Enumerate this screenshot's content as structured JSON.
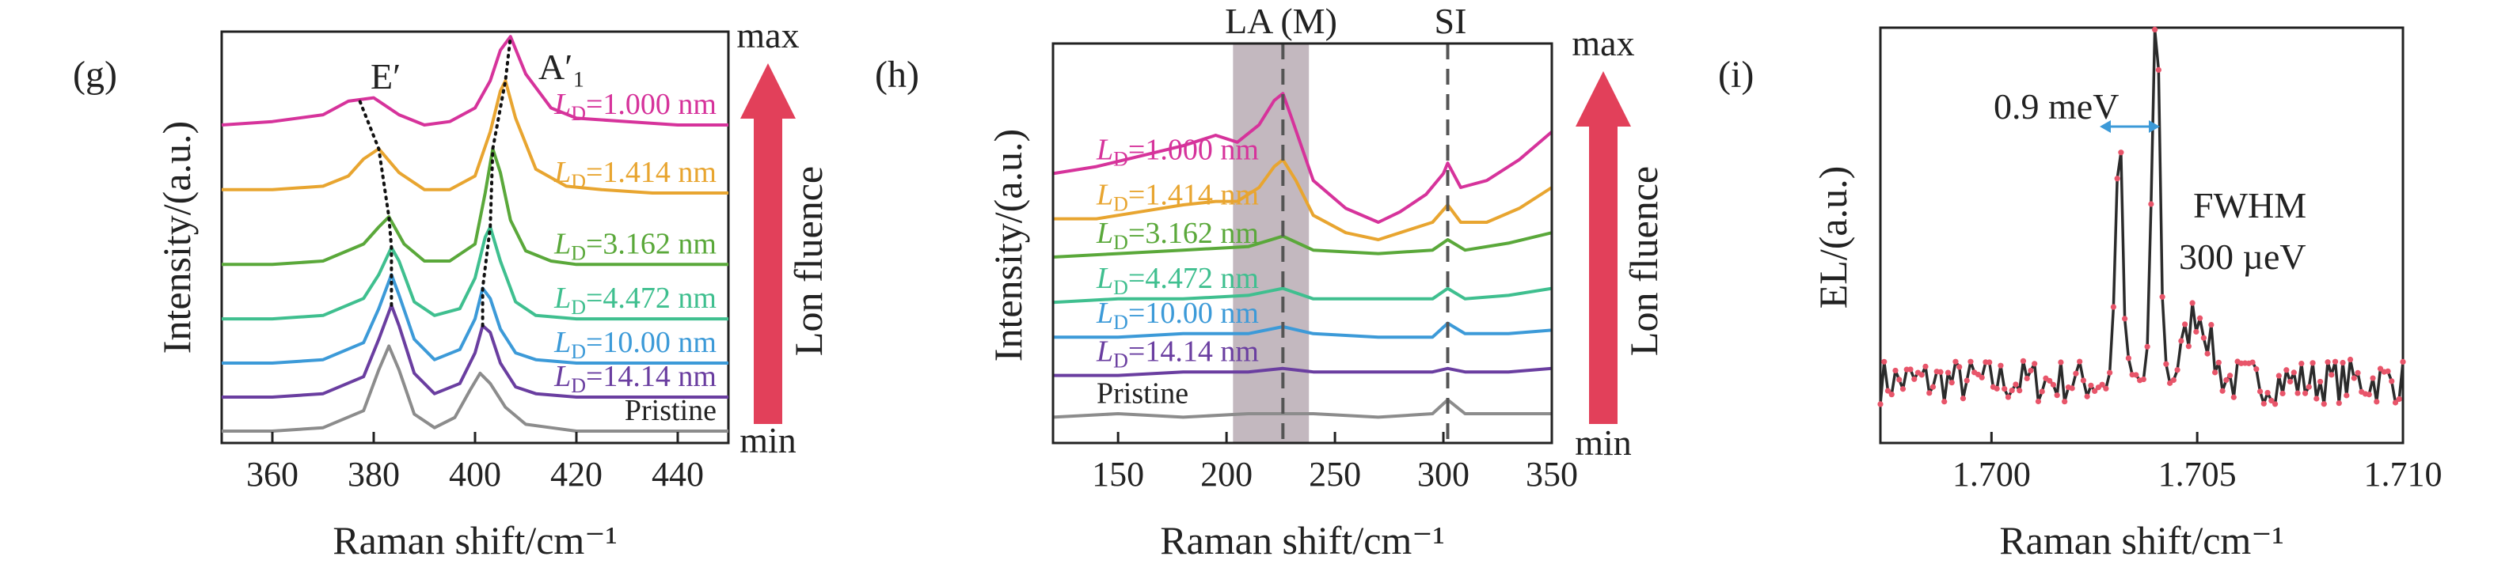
{
  "colors": {
    "magenta": "#d6339b",
    "orange": "#e8a530",
    "green": "#5aa83a",
    "teal": "#3fbf8f",
    "blue": "#3c9ad8",
    "purple": "#6a3ea0",
    "gray": "#8c8c8c",
    "arrow": "#e2405a",
    "band": "#b9abb4"
  },
  "fluence_arrow": {
    "max_label": "max",
    "min_label": "min",
    "text": "Lon fluence"
  },
  "chart_data": [
    {
      "type": "line",
      "panel": "(g)",
      "xlabel": "Raman shift/cm⁻¹",
      "ylabel": "Intensity/(a.u.)",
      "xlim": [
        350,
        450
      ],
      "xticks": [
        360,
        380,
        400,
        420,
        440
      ],
      "annotations": [
        "E′",
        "A′₁"
      ],
      "series": [
        {
          "name": "LD=1.000 nm",
          "prefix": "L",
          "sub": "D",
          "value": "=1.000 nm",
          "color": "#d6339b",
          "x": [
            350,
            360,
            370,
            375,
            380,
            385,
            390,
            395,
            400,
            403,
            405,
            407,
            410,
            415,
            420,
            430,
            440,
            450
          ],
          "y": [
            0.9,
            0.91,
            0.93,
            0.97,
            0.98,
            0.93,
            0.9,
            0.91,
            0.95,
            1.03,
            1.12,
            1.16,
            1.05,
            0.95,
            0.92,
            0.91,
            0.9,
            0.9
          ]
        },
        {
          "name": "LD=1.414 nm",
          "prefix": "L",
          "sub": "D",
          "value": "=1.414 nm",
          "color": "#e8a530",
          "x": [
            350,
            360,
            370,
            375,
            378,
            381,
            385,
            390,
            395,
            400,
            403,
            405,
            406,
            408,
            412,
            418,
            425,
            435,
            450
          ],
          "y": [
            0.71,
            0.71,
            0.72,
            0.75,
            0.8,
            0.83,
            0.76,
            0.71,
            0.71,
            0.75,
            0.88,
            1.0,
            1.03,
            0.92,
            0.77,
            0.72,
            0.71,
            0.7,
            0.7
          ]
        },
        {
          "name": "LD=3.162 nm",
          "prefix": "L",
          "sub": "D",
          "value": "=3.162 nm",
          "color": "#5aa83a",
          "x": [
            350,
            360,
            370,
            378,
            381,
            383,
            386,
            390,
            395,
            400,
            402,
            403.5,
            405,
            407,
            410,
            415,
            420,
            430,
            450
          ],
          "y": [
            0.49,
            0.49,
            0.5,
            0.55,
            0.6,
            0.63,
            0.55,
            0.5,
            0.5,
            0.55,
            0.7,
            0.83,
            0.76,
            0.62,
            0.53,
            0.5,
            0.49,
            0.49,
            0.49
          ]
        },
        {
          "name": "LD=4.472 nm",
          "prefix": "L",
          "sub": "D",
          "value": "=4.472 nm",
          "color": "#3fbf8f",
          "x": [
            350,
            360,
            370,
            378,
            381,
            383.5,
            385,
            388,
            392,
            397,
            400,
            402,
            403,
            405,
            408,
            412,
            420,
            430,
            450
          ],
          "y": [
            0.33,
            0.33,
            0.34,
            0.39,
            0.46,
            0.54,
            0.5,
            0.38,
            0.34,
            0.36,
            0.45,
            0.57,
            0.6,
            0.5,
            0.38,
            0.34,
            0.33,
            0.33,
            0.33
          ]
        },
        {
          "name": "LD=10.00 nm",
          "prefix": "L",
          "sub": "D",
          "value": "=10.00 nm",
          "color": "#3c9ad8",
          "x": [
            350,
            360,
            370,
            378,
            381,
            383.5,
            385,
            388,
            392,
            397,
            400,
            401.5,
            403,
            405,
            408,
            412,
            420,
            430,
            450
          ],
          "y": [
            0.2,
            0.2,
            0.21,
            0.26,
            0.36,
            0.46,
            0.4,
            0.27,
            0.21,
            0.24,
            0.33,
            0.42,
            0.39,
            0.3,
            0.23,
            0.21,
            0.2,
            0.2,
            0.2
          ]
        },
        {
          "name": "LD=14.14 nm",
          "prefix": "L",
          "sub": "D",
          "value": "=14.14 nm",
          "color": "#6a3ea0",
          "x": [
            350,
            360,
            370,
            378,
            381,
            383.5,
            385,
            388,
            392,
            397,
            400,
            401.5,
            403,
            405,
            408,
            412,
            420,
            430,
            450
          ],
          "y": [
            0.1,
            0.1,
            0.11,
            0.16,
            0.27,
            0.37,
            0.31,
            0.17,
            0.11,
            0.14,
            0.23,
            0.31,
            0.29,
            0.2,
            0.13,
            0.11,
            0.1,
            0.1,
            0.1
          ]
        },
        {
          "name": "Pristine",
          "prefix": "Pristine",
          "sub": "",
          "value": "",
          "color": "#8c8c8c",
          "x": [
            350,
            360,
            370,
            378,
            381,
            383,
            385,
            388,
            392,
            396,
            399,
            401,
            403,
            406,
            410,
            415,
            420,
            430,
            450
          ],
          "y": [
            0.0,
            0.0,
            0.01,
            0.06,
            0.18,
            0.25,
            0.18,
            0.05,
            0.01,
            0.04,
            0.12,
            0.17,
            0.14,
            0.07,
            0.02,
            0.01,
            0.0,
            0.0,
            0.0
          ]
        }
      ]
    },
    {
      "type": "line",
      "panel": "(h)",
      "xlabel": "Raman shift/cm⁻¹",
      "ylabel": "Intensity/(a.u.)",
      "xlim": [
        120,
        350
      ],
      "xticks": [
        150,
        200,
        250,
        300,
        350
      ],
      "band": [
        203,
        238
      ],
      "band_label": "LA (M)",
      "si_label": "SI",
      "dashed_x": [
        226,
        302
      ],
      "series": [
        {
          "name": "LD=1.000 nm",
          "prefix": "L",
          "sub": "D",
          "value": "=1.000 nm",
          "color": "#d6339b",
          "x": [
            120,
            140,
            160,
            180,
            195,
            205,
            215,
            222,
            226,
            230,
            240,
            255,
            270,
            280,
            292,
            300,
            302,
            308,
            320,
            335,
            350
          ],
          "y": [
            0.74,
            0.76,
            0.79,
            0.82,
            0.85,
            0.83,
            0.88,
            0.95,
            0.97,
            0.9,
            0.72,
            0.64,
            0.6,
            0.63,
            0.68,
            0.74,
            0.77,
            0.7,
            0.72,
            0.78,
            0.86
          ]
        },
        {
          "name": "LD=1.414 nm",
          "prefix": "L",
          "sub": "D",
          "value": "=1.414 nm",
          "color": "#e8a530",
          "x": [
            120,
            140,
            160,
            180,
            195,
            205,
            215,
            222,
            226,
            232,
            240,
            255,
            270,
            285,
            295,
            302,
            308,
            320,
            335,
            350
          ],
          "y": [
            0.61,
            0.61,
            0.63,
            0.65,
            0.66,
            0.66,
            0.7,
            0.76,
            0.78,
            0.72,
            0.62,
            0.57,
            0.55,
            0.58,
            0.6,
            0.65,
            0.6,
            0.6,
            0.64,
            0.7
          ]
        },
        {
          "name": "LD=3.162 nm",
          "prefix": "L",
          "sub": "D",
          "value": "=3.162 nm",
          "color": "#5aa83a",
          "x": [
            120,
            150,
            180,
            210,
            226,
            240,
            270,
            295,
            302,
            310,
            330,
            350
          ],
          "y": [
            0.5,
            0.51,
            0.52,
            0.53,
            0.56,
            0.52,
            0.51,
            0.52,
            0.55,
            0.52,
            0.54,
            0.57
          ]
        },
        {
          "name": "LD=4.472 nm",
          "prefix": "L",
          "sub": "D",
          "value": "=4.472 nm",
          "color": "#3fbf8f",
          "x": [
            120,
            150,
            180,
            210,
            226,
            240,
            270,
            295,
            302,
            310,
            330,
            350
          ],
          "y": [
            0.37,
            0.38,
            0.38,
            0.39,
            0.41,
            0.38,
            0.38,
            0.38,
            0.41,
            0.38,
            0.39,
            0.41
          ]
        },
        {
          "name": "LD=10.00 nm",
          "prefix": "L",
          "sub": "D",
          "value": "=10.00 nm",
          "color": "#3c9ad8",
          "x": [
            120,
            150,
            180,
            210,
            226,
            240,
            270,
            295,
            302,
            310,
            330,
            350
          ],
          "y": [
            0.27,
            0.27,
            0.28,
            0.28,
            0.3,
            0.28,
            0.27,
            0.27,
            0.31,
            0.28,
            0.28,
            0.29
          ]
        },
        {
          "name": "LD=14.14 nm",
          "prefix": "L",
          "sub": "D",
          "value": "=14.14 nm",
          "color": "#6a3ea0",
          "x": [
            120,
            150,
            180,
            210,
            226,
            240,
            270,
            295,
            302,
            310,
            330,
            350
          ],
          "y": [
            0.16,
            0.16,
            0.17,
            0.17,
            0.18,
            0.17,
            0.17,
            0.17,
            0.18,
            0.17,
            0.17,
            0.18
          ]
        },
        {
          "name": "Pristine",
          "prefix": "Pristine",
          "sub": "",
          "value": "",
          "color": "#8c8c8c",
          "x": [
            120,
            150,
            180,
            210,
            226,
            240,
            270,
            295,
            302,
            310,
            330,
            350
          ],
          "y": [
            0.04,
            0.05,
            0.04,
            0.05,
            0.05,
            0.05,
            0.04,
            0.05,
            0.09,
            0.05,
            0.05,
            0.05
          ]
        }
      ]
    },
    {
      "type": "line",
      "panel": "(i)",
      "xlabel": "Raman shift/cm⁻¹",
      "ylabel": "EL/(a.u.)",
      "xlim": [
        1.6973,
        1.71
      ],
      "xticks": [
        "1.700",
        "1.705",
        "1.710"
      ],
      "annotations": [
        "0.9 meV",
        "FWHM",
        "300 µeV"
      ],
      "line_color": "#2b2b2b",
      "marker_color": "#e8556a",
      "noise_seed": 7,
      "peaks": [
        {
          "center": 1.7031,
          "height": 0.64,
          "width": 0.00012
        },
        {
          "center": 1.704,
          "height": 0.98,
          "width": 0.00013
        }
      ],
      "baseline": 0.12,
      "shoulder": {
        "center": 1.705,
        "height": 0.18,
        "width": 0.0004
      },
      "samples": 140
    }
  ]
}
